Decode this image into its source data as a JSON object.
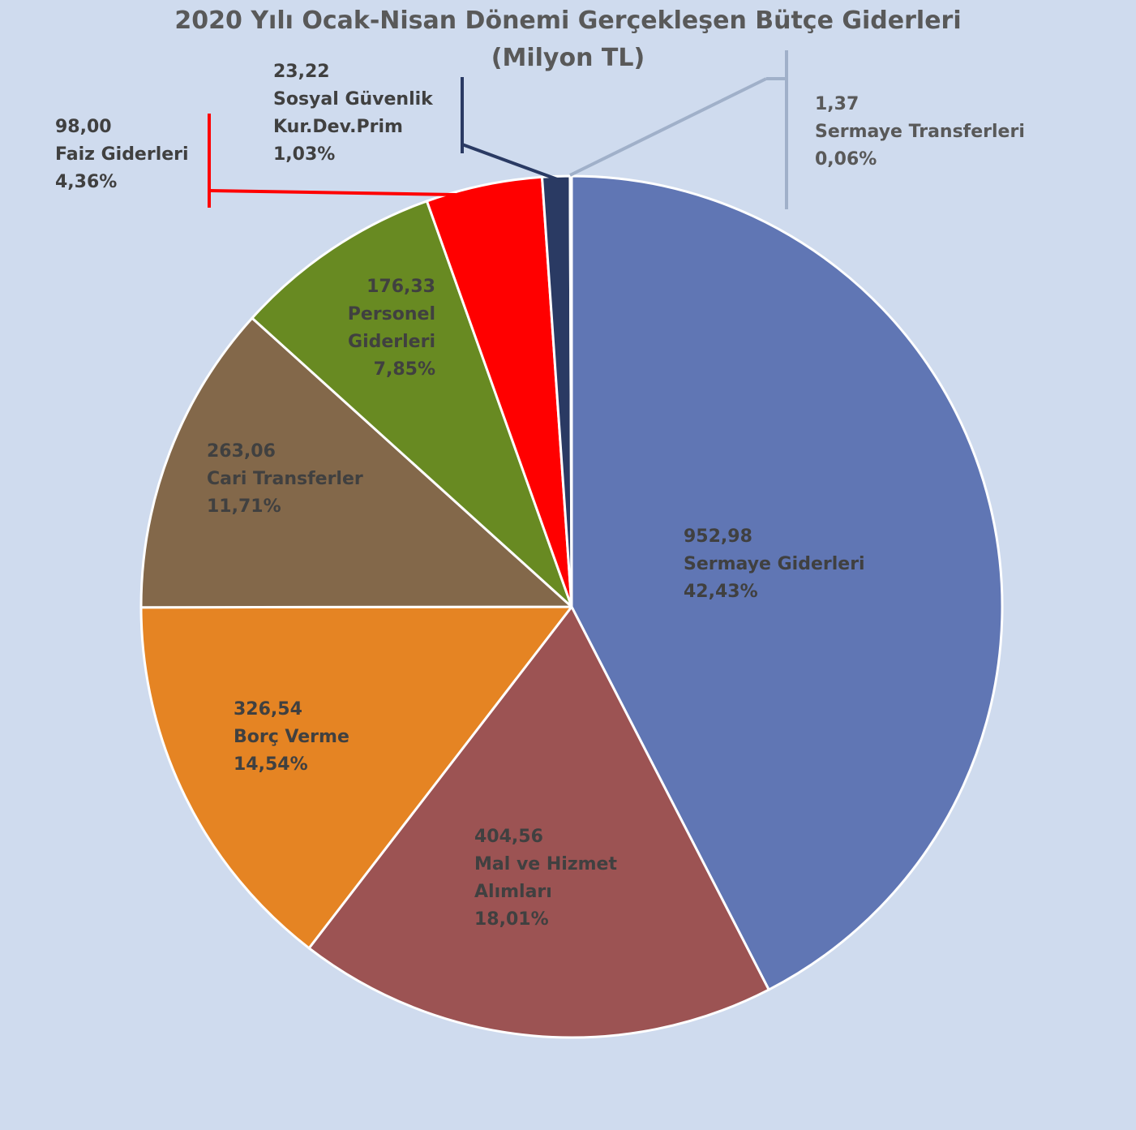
{
  "chart_data": {
    "type": "pie",
    "title": "2020 Yılı Ocak-Nisan Dönemi Gerçekleşen Bütçe Giderleri",
    "subtitle": "(Milyon TL)",
    "categories": [
      "Sermaye Giderleri",
      "Mal ve Hizmet Alımları",
      "Borç Verme",
      "Cari Transferler",
      "Personel Giderleri",
      "Faiz Giderleri",
      "Sosyal Güvenlik Kur.Dev.Prim",
      "Sermaye Transferleri"
    ],
    "values": [
      952.98,
      404.56,
      326.54,
      263.06,
      176.33,
      98.0,
      23.22,
      1.37
    ],
    "value_labels": [
      "952,98",
      "404,56",
      "326,54",
      "263,06",
      "176,33",
      "98,00",
      "23,22",
      "1,37"
    ],
    "percents": [
      42.43,
      18.01,
      14.54,
      11.71,
      7.85,
      4.36,
      1.03,
      0.06
    ],
    "percent_labels": [
      "42,43%",
      "18,01%",
      "14,54%",
      "11,71%",
      "7,85%",
      "4,36%",
      "1,03%",
      "0,06%"
    ],
    "colors": [
      "#6076b4",
      "#9c5353",
      "#e58423",
      "#83684a",
      "#688a22",
      "#ff0000",
      "#2a3a63",
      "#a0b0c9"
    ]
  }
}
